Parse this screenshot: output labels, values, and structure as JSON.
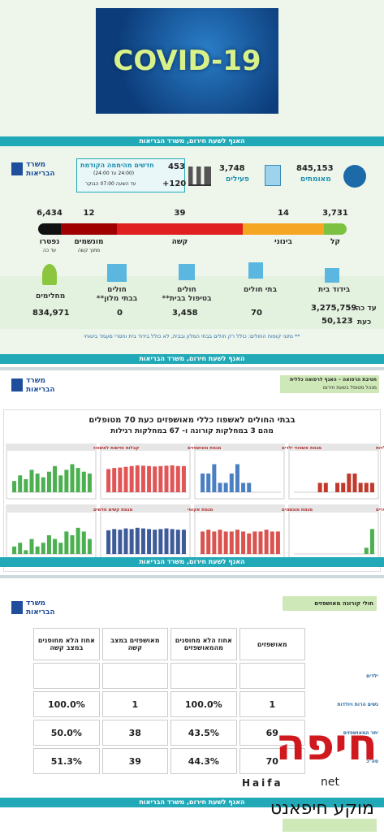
{
  "banner": {
    "title": "COVID-19"
  },
  "ministry_bar": "האגף לשעת חירום, משרד הבריאות",
  "logo": {
    "line1": "משרד",
    "line2": "הבריאות"
  },
  "stats": {
    "confirmed": {
      "value": "845,153",
      "label": "מאומתים"
    },
    "active": {
      "value": "3,748",
      "label": "פעילים"
    },
    "new": {
      "value": "453",
      "label": "חדשים מהיממה הקודמת",
      "range": "(24:00 עד 24:00)",
      "extra": "+120",
      "extra_label": "עד השעה 07:00 הבוקר"
    }
  },
  "severity": [
    {
      "value": "3,731",
      "label": "קל",
      "color": "#7cc242"
    },
    {
      "value": "14",
      "label": "בינוני",
      "color": "#f5a623"
    },
    {
      "value": "39",
      "label": "קשה",
      "color": "#e02020"
    },
    {
      "value": "12",
      "label": "מונשמים",
      "note": "מתוך קשה",
      "color": "#a00000"
    },
    {
      "value": "6,434",
      "label": "נפטרו",
      "note": "עד כה",
      "color": "#111111"
    }
  ],
  "locations": {
    "home_isolation": {
      "label": "בידוד בית",
      "total": "3,275,759",
      "total_label": "עד כה",
      "now": "50,123",
      "now_label": "כעת"
    },
    "hospitals": {
      "label": "בתי חולים",
      "value": "70"
    },
    "home_care": {
      "label": "חולים",
      "label2": "בטיפול בבית**",
      "value": "3,458"
    },
    "hotels": {
      "label": "חולים",
      "label2": "בבתי מלון**",
      "value": "0"
    },
    "recovered": {
      "label": "מחלימים",
      "value": "834,971"
    }
  },
  "footnote": "** נתוני קופות החולים: כולל רק חולים בבתי המלון ובבית, לא כולל בידוד בית וחסרי מעמד ביטוחי",
  "section2": {
    "header1": "חטיבת הרפואה – האגף לרפואה כללית",
    "header2": "מנהל מטופל בשעת חירום",
    "title": "בבתי החולים לאשפוז כללי מאושפזים כעת 70 מטופלים",
    "subtitle": "מהם 3 במחלקות קורונה ו- 67 במחלקות רגילות",
    "panels": [
      {
        "title": "מגמת אשפוזי נשים הרות ויולדות",
        "color": "#c0392b",
        "ylim": [
          0,
          4
        ],
        "values": [
          0,
          0,
          0,
          0,
          1,
          1,
          0,
          1,
          1,
          2,
          2,
          1,
          1,
          1
        ]
      },
      {
        "title": "מגמת אשפוזי ילדים",
        "color": "#4a7fc1",
        "ylim": [
          0,
          4
        ],
        "values": [
          2,
          2,
          3,
          1,
          1,
          2,
          3,
          1,
          1,
          0,
          0,
          0,
          0,
          0
        ]
      },
      {
        "title": "מגמת מאושפזים",
        "color": "#e05555",
        "ylim": [
          0,
          100
        ],
        "values": [
          62,
          65,
          66,
          68,
          70,
          72,
          71,
          70,
          69,
          70,
          71,
          72,
          70,
          70
        ]
      },
      {
        "title": "קבלות חדשות לאשפוז",
        "color": "#4caf50",
        "ylim": [
          0,
          20
        ],
        "values": [
          6,
          9,
          7,
          12,
          10,
          8,
          11,
          14,
          9,
          12,
          15,
          13,
          11,
          10
        ]
      },
      {
        "title": "מגמת נפטרים",
        "color": "#4caf50",
        "ylim": [
          0,
          6
        ],
        "values": [
          0,
          0,
          0,
          0,
          0,
          0,
          0,
          0,
          0,
          0,
          0,
          0,
          1,
          4
        ]
      },
      {
        "title": "מגמת מונשמים",
        "color": "#d9534f",
        "ylim": [
          0,
          20
        ],
        "values": [
          12,
          13,
          12,
          13,
          12,
          12,
          13,
          12,
          11,
          12,
          12,
          13,
          12,
          12
        ]
      },
      {
        "title": "מגמת אקוטי",
        "color": "#3d5a99",
        "ylim": [
          0,
          60
        ],
        "values": [
          38,
          40,
          39,
          41,
          40,
          42,
          41,
          40,
          39,
          40,
          41,
          40,
          39,
          39
        ]
      },
      {
        "title": "מגמת קשים חדשים",
        "color": "#4caf50",
        "ylim": [
          0,
          10
        ],
        "values": [
          2,
          3,
          1,
          4,
          2,
          3,
          5,
          4,
          3,
          6,
          5,
          7,
          6,
          4
        ]
      }
    ]
  },
  "section3": {
    "title": "חולי קורונה מאושפזים",
    "headers": [
      "מאושפזים",
      "אחוז הלא מחוסנים מהמאושפזים",
      "מאושפזים במצב קשה",
      "אחוז הלא מחוסנים במצב קשה"
    ],
    "rows": [
      {
        "label": "ילדים",
        "cells": [
          "",
          "",
          "",
          ""
        ]
      },
      {
        "label": "נשים הרות ויולדות",
        "cells": [
          "1",
          "100.0%",
          "1",
          "100.0%"
        ]
      },
      {
        "label": "יתר המאושפזים",
        "cells": [
          "69",
          "43.5%",
          "38",
          "50.0%"
        ]
      },
      {
        "label": "סה\"כ",
        "cells": [
          "70",
          "44.3%",
          "39",
          "51.3%"
        ]
      }
    ]
  },
  "watermark": {
    "main": "חיפה",
    "latin": "Haifa",
    "net": "net",
    "sub": "מוקע חיפאנט"
  }
}
